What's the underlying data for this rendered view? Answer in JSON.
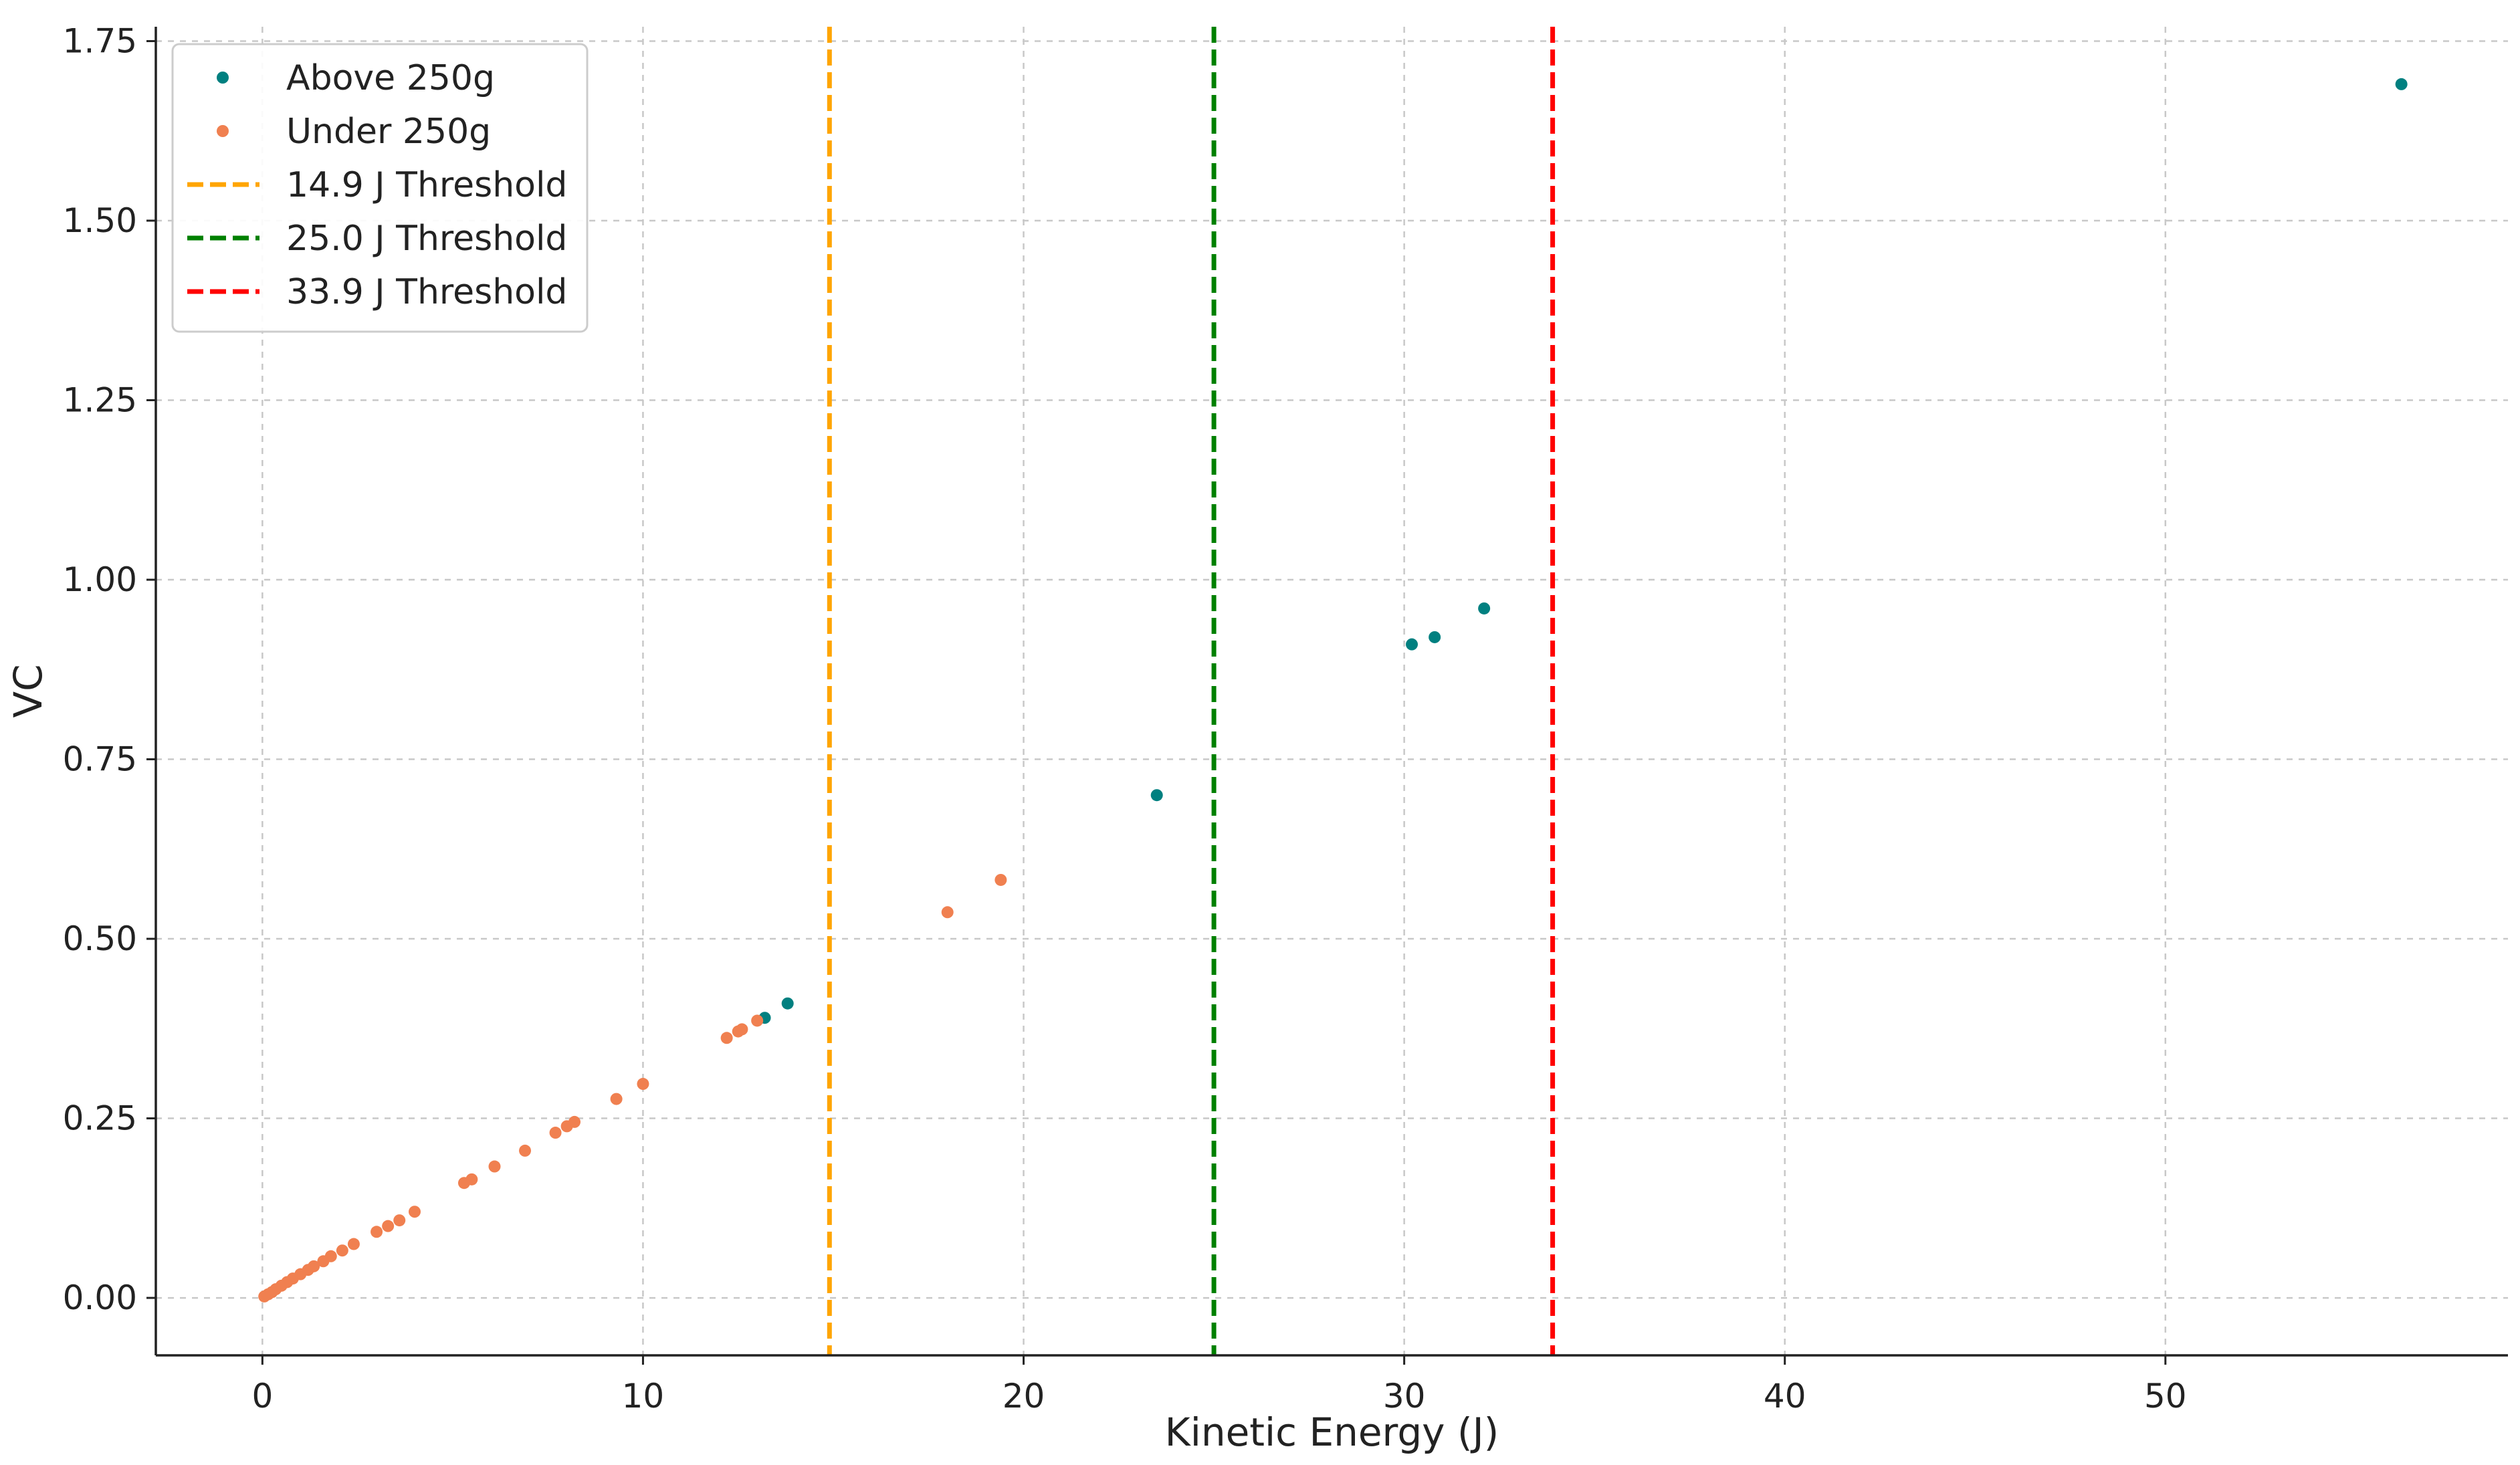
{
  "chart_data": {
    "type": "scatter",
    "title": "",
    "xlabel": "Kinetic Energy (J)",
    "ylabel": "VC",
    "xlim": [
      -2.8,
      59.0
    ],
    "ylim": [
      -0.08,
      1.77
    ],
    "xticks": [
      0,
      10,
      20,
      30,
      40,
      50
    ],
    "yticks": [
      0.0,
      0.25,
      0.5,
      0.75,
      1.0,
      1.25,
      1.5,
      1.75
    ],
    "xtick_labels": [
      "0",
      "10",
      "20",
      "30",
      "40",
      "50"
    ],
    "ytick_labels": [
      "0.00",
      "0.25",
      "0.50",
      "0.75",
      "1.00",
      "1.25",
      "1.50",
      "1.75"
    ],
    "grid": true,
    "legend_position": "top-left",
    "series": [
      {
        "name": "Above 250g",
        "color": "#008080",
        "points": [
          {
            "x": 13.2,
            "y": 0.39
          },
          {
            "x": 13.8,
            "y": 0.41
          },
          {
            "x": 23.5,
            "y": 0.7
          },
          {
            "x": 30.2,
            "y": 0.91
          },
          {
            "x": 30.8,
            "y": 0.92
          },
          {
            "x": 32.1,
            "y": 0.96
          },
          {
            "x": 56.2,
            "y": 1.69
          }
        ]
      },
      {
        "name": "Under 250g",
        "color": "#f08050",
        "points": [
          {
            "x": 0.05,
            "y": 0.002
          },
          {
            "x": 0.15,
            "y": 0.005
          },
          {
            "x": 0.25,
            "y": 0.008
          },
          {
            "x": 0.35,
            "y": 0.012
          },
          {
            "x": 0.5,
            "y": 0.017
          },
          {
            "x": 0.65,
            "y": 0.022
          },
          {
            "x": 0.8,
            "y": 0.027
          },
          {
            "x": 1.0,
            "y": 0.033
          },
          {
            "x": 1.2,
            "y": 0.039
          },
          {
            "x": 1.35,
            "y": 0.044
          },
          {
            "x": 1.6,
            "y": 0.051
          },
          {
            "x": 1.8,
            "y": 0.058
          },
          {
            "x": 2.1,
            "y": 0.066
          },
          {
            "x": 2.4,
            "y": 0.075
          },
          {
            "x": 3.0,
            "y": 0.092
          },
          {
            "x": 3.3,
            "y": 0.1
          },
          {
            "x": 3.6,
            "y": 0.108
          },
          {
            "x": 4.0,
            "y": 0.12
          },
          {
            "x": 5.3,
            "y": 0.16
          },
          {
            "x": 5.5,
            "y": 0.165
          },
          {
            "x": 6.1,
            "y": 0.183
          },
          {
            "x": 6.9,
            "y": 0.205
          },
          {
            "x": 7.7,
            "y": 0.23
          },
          {
            "x": 8.0,
            "y": 0.239
          },
          {
            "x": 8.2,
            "y": 0.245
          },
          {
            "x": 9.3,
            "y": 0.277
          },
          {
            "x": 10.0,
            "y": 0.298
          },
          {
            "x": 12.2,
            "y": 0.362
          },
          {
            "x": 12.5,
            "y": 0.371
          },
          {
            "x": 12.6,
            "y": 0.374
          },
          {
            "x": 13.0,
            "y": 0.386
          },
          {
            "x": 18.0,
            "y": 0.537
          },
          {
            "x": 19.4,
            "y": 0.582
          }
        ]
      }
    ],
    "thresholds": [
      {
        "name": "14.9 J Threshold",
        "x": 14.9,
        "color": "#ffa500"
      },
      {
        "name": "25.0 J Threshold",
        "x": 25.0,
        "color": "#008000"
      },
      {
        "name": "33.9 J Threshold",
        "x": 33.9,
        "color": "#ff0000"
      }
    ]
  }
}
